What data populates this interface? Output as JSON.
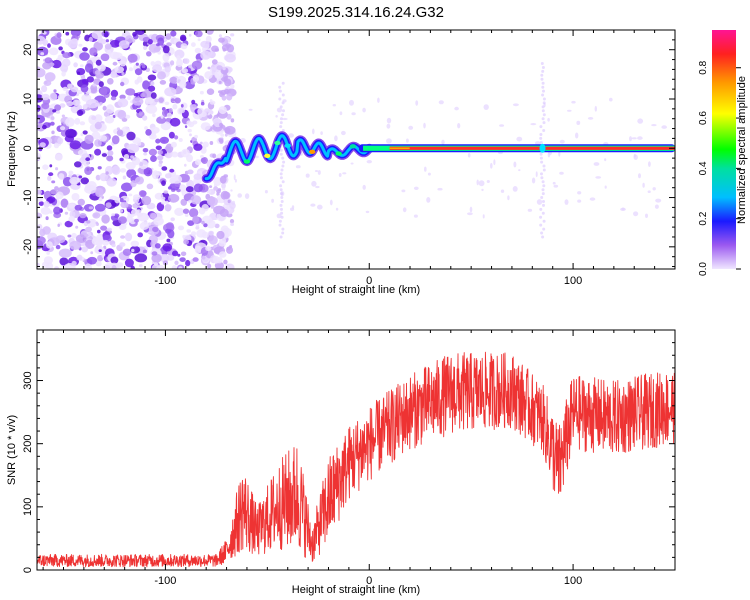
{
  "chart_data": [
    {
      "type": "heatmap",
      "title": "S199.2025.314.16.24.G32",
      "xlabel": "Height of straight line (km)",
      "ylabel": "Frequency (Hz)",
      "xlim": [
        -163,
        150
      ],
      "ylim": [
        -24.5,
        24
      ],
      "xticks": [
        -100,
        0,
        100
      ],
      "yticks": [
        -20,
        -10,
        0,
        10,
        20
      ],
      "colorbar": {
        "label": "Normalized spectral amplitude",
        "ticks": [
          0.0,
          0.2,
          0.4,
          0.6,
          0.8
        ],
        "range": [
          0,
          0.95
        ]
      },
      "regions": [
        {
          "name": "noise",
          "x": [
            -163,
            -73
          ],
          "frequency": [
            -24.5,
            24
          ],
          "amplitude": 0.08
        },
        {
          "name": "onset ridge",
          "x": [
            -80,
            -20
          ],
          "frequency": [
            -7,
            4
          ],
          "amplitude": 0.3
        },
        {
          "name": "stable line",
          "x": [
            0,
            150
          ],
          "frequency": [
            0,
            0
          ],
          "amplitude": 0.9
        }
      ]
    },
    {
      "type": "line",
      "xlabel": "Height of straight line (km)",
      "ylabel": "SNR (10 * v/v)",
      "xlim": [
        -163,
        150
      ],
      "ylim": [
        0,
        380
      ],
      "xticks": [
        -100,
        0,
        100
      ],
      "yticks": [
        0,
        100,
        200,
        300
      ],
      "color": "#ee3333",
      "envelope": [
        {
          "x": -163,
          "mean": 15,
          "spread": 10
        },
        {
          "x": -75,
          "mean": 15,
          "spread": 10
        },
        {
          "x": -70,
          "mean": 30,
          "spread": 20
        },
        {
          "x": -62,
          "mean": 100,
          "spread": 70
        },
        {
          "x": -55,
          "mean": 60,
          "spread": 40
        },
        {
          "x": -45,
          "mean": 100,
          "spread": 70
        },
        {
          "x": -35,
          "mean": 120,
          "spread": 90
        },
        {
          "x": -28,
          "mean": 40,
          "spread": 30
        },
        {
          "x": -20,
          "mean": 110,
          "spread": 70
        },
        {
          "x": -10,
          "mean": 170,
          "spread": 60
        },
        {
          "x": 0,
          "mean": 200,
          "spread": 60
        },
        {
          "x": 20,
          "mean": 250,
          "spread": 60
        },
        {
          "x": 40,
          "mean": 280,
          "spread": 65
        },
        {
          "x": 70,
          "mean": 285,
          "spread": 60
        },
        {
          "x": 85,
          "mean": 240,
          "spread": 55
        },
        {
          "x": 93,
          "mean": 160,
          "spread": 70
        },
        {
          "x": 100,
          "mean": 250,
          "spread": 60
        },
        {
          "x": 120,
          "mean": 240,
          "spread": 60
        },
        {
          "x": 150,
          "mean": 260,
          "spread": 60
        }
      ]
    }
  ]
}
